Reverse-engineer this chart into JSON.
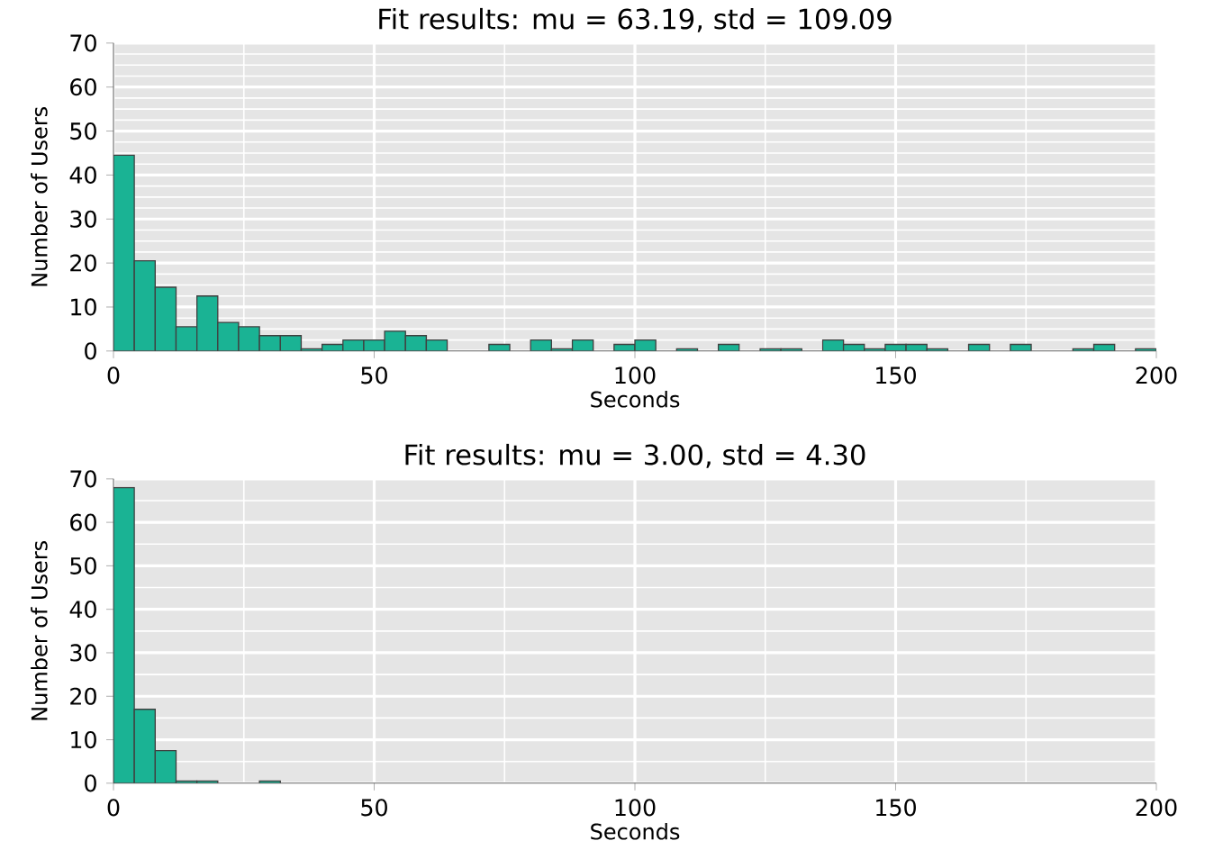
{
  "chart_data": [
    {
      "type": "histogram",
      "title": "Fit results: mu = 63.19,  std = 109.09",
      "xlabel": "Seconds",
      "ylabel": "Number of Users",
      "bins": [
        0,
        4,
        8,
        12,
        16,
        20,
        24,
        28,
        32,
        36,
        40,
        44,
        48,
        52,
        56,
        60,
        64,
        68,
        72,
        76,
        80,
        84,
        88,
        92,
        96,
        100,
        104,
        108,
        112,
        116,
        120,
        124,
        128,
        132,
        136,
        140,
        144,
        148,
        152,
        156,
        160,
        164,
        168,
        172,
        176,
        180,
        184,
        188,
        192,
        196,
        200
      ],
      "values": [
        44.5,
        20.5,
        14.5,
        5.5,
        12.5,
        6.5,
        5.5,
        3.5,
        3.5,
        0.5,
        1.5,
        2.5,
        2.5,
        4.5,
        3.5,
        2.5,
        0,
        0,
        1.5,
        0,
        2.5,
        0.5,
        2.5,
        0,
        1.5,
        2.5,
        0,
        0.5,
        0,
        1.5,
        0,
        0.5,
        0.5,
        0,
        2.5,
        1.5,
        0.5,
        1.5,
        1.5,
        0.5,
        0,
        1.5,
        0,
        1.5,
        0,
        0,
        0.5,
        1.5,
        0,
        0.5
      ],
      "color": "#1ab394",
      "xlim": [
        0,
        200
      ],
      "ylim": [
        0,
        70
      ],
      "xticks": [
        0,
        50,
        100,
        150,
        200
      ],
      "yticks": [
        0,
        10,
        20,
        30,
        40,
        50,
        60,
        70
      ],
      "grid": true
    },
    {
      "type": "histogram",
      "title": "Fit results: mu = 3.00,  std = 4.30",
      "xlabel": "Seconds",
      "ylabel": "Number of Users",
      "bins": [
        0,
        4,
        8,
        12,
        16,
        20,
        24,
        28,
        32,
        36,
        40,
        44,
        48,
        52,
        56,
        60,
        64,
        68,
        72,
        76,
        80,
        84,
        88,
        92,
        96,
        100,
        104,
        108,
        112,
        116,
        120,
        124,
        128,
        132,
        136,
        140,
        144,
        148,
        152,
        156,
        160,
        164,
        168,
        172,
        176,
        180,
        184,
        188,
        192,
        196,
        200
      ],
      "values": [
        68,
        17,
        7.5,
        0.5,
        0.5,
        0,
        0,
        0.5,
        0,
        0,
        0,
        0,
        0,
        0,
        0,
        0,
        0,
        0,
        0,
        0,
        0,
        0,
        0,
        0,
        0,
        0,
        0,
        0,
        0,
        0,
        0,
        0,
        0,
        0,
        0,
        0,
        0,
        0,
        0,
        0,
        0,
        0,
        0,
        0,
        0,
        0,
        0,
        0,
        0,
        0
      ],
      "color": "#1ab394",
      "xlim": [
        0,
        200
      ],
      "ylim": [
        0,
        70
      ],
      "xticks": [
        0,
        50,
        100,
        150,
        200
      ],
      "yticks": [
        0,
        10,
        20,
        30,
        40,
        50,
        60,
        70
      ],
      "grid": true
    }
  ]
}
